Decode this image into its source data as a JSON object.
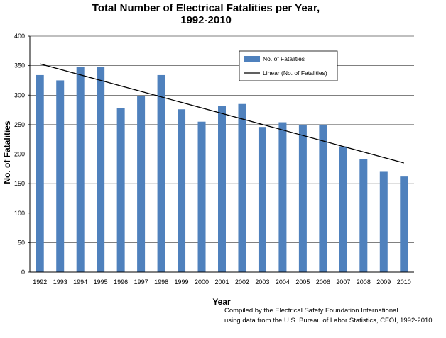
{
  "chart_data": {
    "type": "bar",
    "title_line1": "Total Number of Electrical Fatalities per Year,",
    "title_line2": "1992-2010",
    "xlabel": "Year",
    "ylabel": "No. of Fatalities",
    "categories": [
      "1992",
      "1993",
      "1994",
      "1995",
      "1996",
      "1997",
      "1998",
      "1999",
      "2000",
      "2001",
      "2002",
      "2003",
      "2004",
      "2005",
      "2006",
      "2007",
      "2008",
      "2009",
      "2010"
    ],
    "series": [
      {
        "name": "No. of Fatalities",
        "values": [
          334,
          325,
          348,
          348,
          278,
          298,
          334,
          276,
          255,
          282,
          285,
          246,
          254,
          250,
          250,
          213,
          192,
          170,
          162
        ],
        "color": "#4f81bd"
      }
    ],
    "trendline": {
      "name": "Linear (No. of Fatalities)",
      "start": 353,
      "end": 185,
      "color": "#000000"
    },
    "ylim": [
      0,
      400
    ],
    "yticks": [
      0,
      50,
      100,
      150,
      200,
      250,
      300,
      350,
      400
    ],
    "grid": true,
    "legend": "top-right"
  },
  "source_note": {
    "line1": "Compiled by the Electrical Safety Foundation International",
    "line2": "using data from the U.S. Bureau of Labor Statistics, CFOI, 1992-2010"
  }
}
